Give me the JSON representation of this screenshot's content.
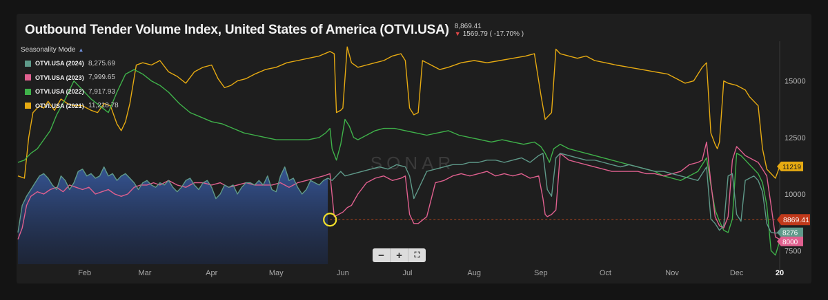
{
  "header": {
    "title": "Outbound Tender Volume Index, United States of America (OTVI.USA)",
    "current_value": "8,869.41",
    "change": "1569.79 ( -17.70% )"
  },
  "legend": {
    "mode_label": "Seasonality Mode",
    "items": [
      {
        "name": "OTVI.USA (2024)",
        "value": "8,275.69",
        "color": "#5f9a8a"
      },
      {
        "name": "OTVI.USA (2023)",
        "value": "7,999.65",
        "color": "#e0608f"
      },
      {
        "name": "OTVI.USA (2022)",
        "value": "7,917.93",
        "color": "#3fb24a"
      },
      {
        "name": "OTVI.USA (2021)",
        "value": "11,218.78",
        "color": "#e6aa12"
      }
    ]
  },
  "watermark": "SONAR",
  "chart_data": {
    "type": "line",
    "x_domain": [
      0,
      354
    ],
    "ylim": [
      6900,
      16750
    ],
    "y_ticks": [
      7500,
      10000,
      12500,
      15000
    ],
    "y_tick_labels": [
      "7500",
      "10000",
      "12500",
      "15000"
    ],
    "x_ticks": [
      31,
      59,
      90,
      120,
      151,
      181,
      212,
      243,
      273,
      304,
      334,
      354
    ],
    "x_tick_labels": [
      "Feb",
      "Mar",
      "Apr",
      "May",
      "Jun",
      "Jul",
      "Aug",
      "Sep",
      "Oct",
      "Nov",
      "Dec",
      "20"
    ],
    "reference_line": {
      "value": 8869.41,
      "label": "8869.41",
      "color": "#c0391a"
    },
    "end_labels": [
      {
        "label": "11219",
        "value": 11219,
        "color": "#e6aa12"
      },
      {
        "label": "8276",
        "value": 8276,
        "color": "#5f9a8a"
      },
      {
        "label": "8000",
        "value": 8000,
        "color": "#e0608f"
      }
    ],
    "highlight_marker": {
      "x": 145,
      "value": 8869.41,
      "color": "#f2e02a"
    },
    "series": [
      {
        "name": "OTVI.USA (2021)",
        "color": "#e6aa12",
        "x": [
          0,
          3,
          5,
          7,
          10,
          12,
          14,
          17,
          20,
          23,
          26,
          30,
          34,
          37,
          40,
          43,
          46,
          48,
          50,
          52,
          55,
          58,
          62,
          66,
          70,
          74,
          78,
          82,
          86,
          90,
          93,
          96,
          99,
          102,
          106,
          110,
          115,
          120,
          125,
          130,
          135,
          140,
          145,
          147,
          148,
          150,
          151,
          153,
          155,
          158,
          162,
          166,
          170,
          174,
          178,
          180,
          182,
          184,
          186,
          188,
          192,
          196,
          200,
          206,
          212,
          218,
          224,
          230,
          236,
          240,
          243,
          245,
          246,
          248,
          250,
          252,
          256,
          260,
          264,
          268,
          273,
          278,
          284,
          290,
          296,
          302,
          306,
          310,
          314,
          318,
          320,
          322,
          324,
          325,
          326,
          328,
          330,
          334,
          338,
          340,
          342,
          344,
          346,
          348,
          350,
          352,
          354
        ],
        "y": [
          10800,
          10700,
          12500,
          13600,
          13900,
          13800,
          14100,
          13700,
          14200,
          14000,
          13900,
          13900,
          13700,
          13600,
          14000,
          13900,
          13100,
          12800,
          13200,
          14000,
          15700,
          15800,
          15700,
          15900,
          15400,
          15200,
          14900,
          15400,
          15600,
          15700,
          15100,
          14700,
          14800,
          15000,
          15100,
          15300,
          15500,
          15600,
          15800,
          15900,
          16000,
          16100,
          16300,
          16200,
          13600,
          13700,
          13800,
          16500,
          15800,
          15600,
          15700,
          15800,
          15900,
          16100,
          16200,
          15900,
          13800,
          13500,
          13600,
          15900,
          15700,
          15500,
          15600,
          15800,
          15900,
          15800,
          15900,
          16000,
          16100,
          16200,
          14400,
          13300,
          13400,
          13600,
          16400,
          16200,
          16100,
          16000,
          16100,
          15900,
          15800,
          15700,
          15600,
          15500,
          15400,
          15300,
          15100,
          14900,
          15000,
          15600,
          15800,
          12700,
          12200,
          12000,
          12300,
          15000,
          14900,
          14800,
          14600,
          14300,
          14100,
          13900,
          12000,
          11100,
          10900,
          10700,
          11219
        ]
      },
      {
        "name": "OTVI.USA (2022)",
        "color": "#3fb24a",
        "x": [
          0,
          3,
          6,
          9,
          12,
          15,
          18,
          22,
          26,
          30,
          34,
          38,
          42,
          46,
          50,
          54,
          58,
          62,
          66,
          70,
          75,
          80,
          85,
          90,
          95,
          100,
          105,
          110,
          115,
          120,
          125,
          130,
          135,
          140,
          143,
          145,
          146,
          148,
          150,
          152,
          154,
          156,
          158,
          162,
          166,
          170,
          175,
          180,
          185,
          190,
          195,
          200,
          205,
          210,
          215,
          220,
          225,
          230,
          235,
          240,
          243,
          245,
          247,
          249,
          252,
          256,
          260,
          264,
          268,
          272,
          276,
          280,
          284,
          288,
          292,
          296,
          300,
          304,
          308,
          312,
          316,
          320,
          322,
          324,
          326,
          328,
          330,
          332,
          334,
          336,
          338,
          340,
          342,
          344,
          346,
          348,
          350,
          352,
          354
        ],
        "y": [
          11400,
          11500,
          11800,
          12000,
          12400,
          12800,
          13500,
          14200,
          15000,
          14600,
          14200,
          13900,
          13600,
          14500,
          15300,
          15500,
          15300,
          15000,
          14800,
          14500,
          14000,
          13600,
          13400,
          13200,
          13100,
          12900,
          12700,
          12600,
          12500,
          12400,
          12400,
          12400,
          12400,
          12500,
          12700,
          12900,
          12000,
          11500,
          12200,
          13300,
          13000,
          12500,
          12400,
          12600,
          12800,
          12900,
          12900,
          12800,
          12700,
          12600,
          12700,
          12800,
          12600,
          12500,
          12400,
          12300,
          12400,
          12300,
          12200,
          12300,
          12100,
          11800,
          11400,
          12000,
          12200,
          12000,
          11900,
          11800,
          11700,
          11600,
          11500,
          11400,
          11300,
          11200,
          11100,
          11000,
          10800,
          10700,
          10600,
          10800,
          11000,
          11600,
          10400,
          9300,
          8800,
          8400,
          8300,
          8900,
          11800,
          11700,
          11500,
          11300,
          11100,
          10900,
          10500,
          9500,
          7500,
          7300,
          7918
        ]
      },
      {
        "name": "OTVI.USA (2023)",
        "color": "#e0608f",
        "x": [
          0,
          2,
          4,
          6,
          9,
          12,
          15,
          18,
          21,
          24,
          27,
          30,
          33,
          36,
          39,
          42,
          45,
          48,
          51,
          54,
          57,
          60,
          63,
          66,
          70,
          74,
          78,
          82,
          86,
          90,
          94,
          98,
          102,
          106,
          110,
          114,
          118,
          122,
          126,
          130,
          134,
          138,
          142,
          145,
          147,
          149,
          151,
          153,
          155,
          158,
          162,
          166,
          170,
          174,
          178,
          180,
          182,
          184,
          186,
          190,
          194,
          198,
          202,
          206,
          210,
          214,
          218,
          222,
          226,
          230,
          234,
          238,
          242,
          244,
          245,
          246,
          248,
          250,
          252,
          256,
          260,
          264,
          268,
          272,
          276,
          280,
          284,
          288,
          292,
          296,
          300,
          304,
          308,
          312,
          316,
          318,
          320,
          322,
          324,
          326,
          328,
          330,
          332,
          334,
          336,
          338,
          340,
          342,
          344,
          346,
          348,
          350,
          352,
          354
        ],
        "y": [
          8000,
          8500,
          9500,
          9900,
          10100,
          10000,
          10200,
          10300,
          10100,
          10400,
          10300,
          10200,
          10300,
          10000,
          10100,
          10200,
          10000,
          9900,
          10000,
          10300,
          10400,
          10400,
          10500,
          10400,
          10600,
          10400,
          10300,
          10500,
          10500,
          10400,
          10500,
          10300,
          10400,
          10500,
          10400,
          10400,
          10400,
          10500,
          10300,
          10500,
          10600,
          10700,
          10800,
          10900,
          9000,
          9100,
          9200,
          9400,
          9500,
          10000,
          10500,
          10700,
          10800,
          10600,
          10700,
          10800,
          9100,
          8700,
          8700,
          9000,
          10500,
          10600,
          10800,
          10900,
          10800,
          10900,
          11000,
          10800,
          10900,
          10800,
          10900,
          10700,
          10800,
          9800,
          9100,
          9000,
          9100,
          9300,
          11800,
          11500,
          11400,
          11300,
          11200,
          11100,
          11000,
          11000,
          11000,
          11000,
          10900,
          10900,
          10800,
          10900,
          11000,
          11300,
          11400,
          11500,
          12300,
          10500,
          9000,
          8600,
          8500,
          9000,
          11500,
          12100,
          11900,
          11700,
          11600,
          11500,
          11400,
          11100,
          10800,
          9500,
          8100,
          8000
        ]
      },
      {
        "name": "OTVI.USA (2024)",
        "color": "#5f9a8a",
        "area_fill_until": 144,
        "x": [
          0,
          2,
          4,
          6,
          8,
          10,
          12,
          14,
          16,
          18,
          20,
          22,
          24,
          26,
          28,
          30,
          32,
          34,
          36,
          38,
          40,
          42,
          44,
          46,
          48,
          50,
          52,
          54,
          56,
          58,
          60,
          62,
          64,
          66,
          68,
          70,
          72,
          74,
          76,
          78,
          80,
          82,
          84,
          86,
          88,
          90,
          92,
          94,
          96,
          98,
          100,
          102,
          104,
          106,
          108,
          110,
          112,
          114,
          116,
          118,
          120,
          122,
          124,
          126,
          128,
          130,
          132,
          134,
          136,
          138,
          140,
          142,
          144,
          146,
          148,
          150,
          152,
          156,
          160,
          164,
          168,
          172,
          176,
          180,
          182,
          184,
          186,
          190,
          194,
          198,
          202,
          206,
          210,
          214,
          218,
          222,
          226,
          230,
          234,
          238,
          242,
          244,
          246,
          248,
          250,
          252,
          256,
          260,
          264,
          268,
          272,
          276,
          280,
          284,
          288,
          292,
          296,
          300,
          304,
          308,
          312,
          316,
          318,
          320,
          322,
          324,
          326,
          328,
          330,
          332,
          334,
          336,
          338,
          340,
          342,
          344,
          346,
          348,
          350,
          352,
          354
        ],
        "y": [
          8300,
          9500,
          9900,
          10200,
          10500,
          10800,
          10900,
          10700,
          10400,
          10200,
          10800,
          10600,
          10200,
          10500,
          11000,
          11100,
          10800,
          10900,
          10700,
          10800,
          11200,
          10800,
          10900,
          10600,
          10800,
          10900,
          10700,
          10500,
          10200,
          10500,
          10600,
          10400,
          10300,
          10500,
          10400,
          10600,
          10300,
          10100,
          10300,
          10600,
          10700,
          10400,
          10200,
          10500,
          10600,
          10300,
          9800,
          10000,
          10400,
          10300,
          10400,
          10000,
          10300,
          10500,
          10500,
          10400,
          10600,
          10400,
          10800,
          10200,
          10100,
          10800,
          11200,
          10600,
          10700,
          10300,
          10000,
          10200,
          10600,
          10500,
          10400,
          10600,
          10700,
          10600,
          10800,
          11000,
          10800,
          10900,
          11000,
          11100,
          11200,
          11100,
          11300,
          11200,
          10800,
          9800,
          10200,
          11000,
          11100,
          11200,
          11300,
          11300,
          11400,
          11400,
          11500,
          11500,
          11400,
          11500,
          11600,
          11400,
          11700,
          11800,
          10200,
          9900,
          11600,
          11800,
          11700,
          11600,
          11500,
          11500,
          11400,
          11300,
          11200,
          11300,
          11200,
          11100,
          11000,
          11000,
          10900,
          10800,
          10700,
          10600,
          10900,
          11200,
          8900,
          8700,
          8400,
          8600,
          10800,
          10900,
          9100,
          8800,
          10600,
          10700,
          10800,
          10600,
          10100,
          8700,
          8300,
          8276,
          8276
        ]
      }
    ]
  }
}
